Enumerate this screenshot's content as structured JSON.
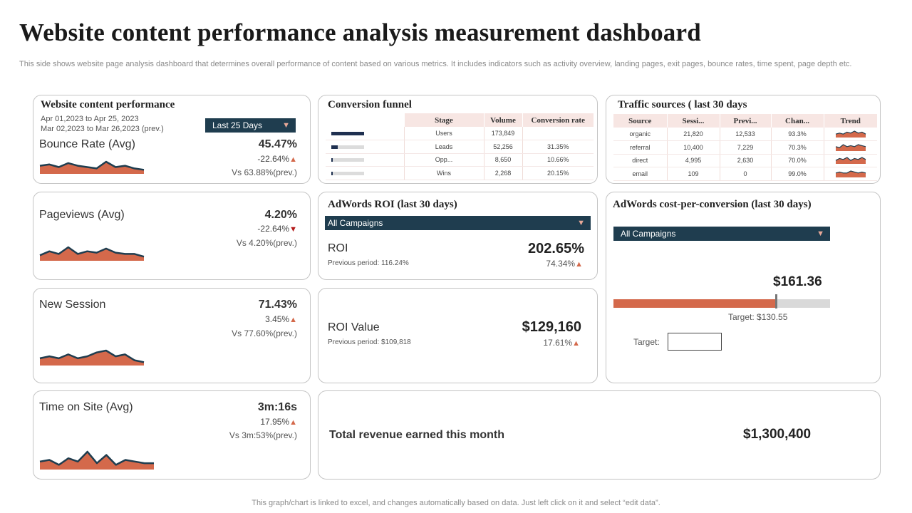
{
  "page": {
    "title": "Website content performance analysis measurement dashboard",
    "subtitle": "This side shows website page analysis dashboard that determines overall performance of content based on various metrics. It includes indicators such as activity overview, landing pages, exit pages, bounce rates, time spent, page depth etc.",
    "footer": "This graph/chart is linked to excel, and changes automatically based on data. Just left click on it and select “edit data”."
  },
  "colors": {
    "accent": "#d4694b",
    "navy": "#1f3d4f",
    "border": "#c4c4c4",
    "header_bg": "#f7e6e3"
  },
  "content_performance": {
    "title": "Website content performance",
    "date_current": "Apr 01,2023 to Apr 25, 2023",
    "date_prev": "Mar 02,2023 to Mar 26,2023 (prev.)",
    "range_dropdown": "Last 25 Days"
  },
  "metrics": [
    {
      "name": "Bounce Rate (Avg)",
      "value": "45.47%",
      "change": "-22.64%",
      "direction": "up",
      "prev": "Vs 63.88%(prev.)",
      "trend": [
        5,
        6,
        4,
        7,
        5,
        4,
        3,
        8,
        4,
        5,
        3,
        2
      ]
    },
    {
      "name": "Pageviews (Avg)",
      "value": "4.20%",
      "change": "-22.64%",
      "direction": "down",
      "prev": "Vs 4.20%(prev.)",
      "trend": [
        3,
        6,
        4,
        9,
        4,
        6,
        5,
        8,
        5,
        4,
        4,
        2
      ]
    },
    {
      "name": "New Session",
      "value": "71.43%",
      "change": "3.45%",
      "direction": "up",
      "prev": "Vs 77.60%(prev.)",
      "trend": [
        3,
        4,
        3,
        5,
        3,
        4,
        6,
        7,
        4,
        5,
        2,
        1
      ]
    },
    {
      "name": "Time on Site (Avg)",
      "value": "3m:16s",
      "change": "17.95%",
      "direction": "up",
      "prev": "Vs 3m:53%(prev.)",
      "trend": [
        4,
        5,
        2,
        6,
        4,
        10,
        3,
        8,
        2,
        5,
        4,
        3,
        3
      ]
    }
  ],
  "funnel": {
    "title": "Conversion  funnel",
    "headers": [
      "Stage",
      "Volume",
      "Conversion rate"
    ],
    "rows": [
      {
        "stage": "Users",
        "volume": "173,849",
        "rate": "",
        "fill": 1.0
      },
      {
        "stage": "Leads",
        "volume": "52,256",
        "rate": "31.35%",
        "fill": 0.2
      },
      {
        "stage": "Opp...",
        "volume": "8,650",
        "rate": "10.66%",
        "fill": 0.04
      },
      {
        "stage": "Wins",
        "volume": "2,268",
        "rate": "20.15%",
        "fill": 0.02
      }
    ]
  },
  "traffic": {
    "title": "Traffic  sources ( last 30 days",
    "headers": [
      "Source",
      "Sessi...",
      "Previ...",
      "Chan...",
      "Trend"
    ],
    "rows": [
      {
        "source": "organic",
        "sessions": "21,820",
        "previous": "12,533",
        "change": "93.3%",
        "trend": [
          2,
          3,
          2,
          4,
          3,
          5,
          3,
          4,
          2
        ]
      },
      {
        "source": "referral",
        "sessions": "10,400",
        "previous": "7,229",
        "change": "70.3%",
        "trend": [
          3,
          2,
          5,
          3,
          4,
          3,
          5,
          4,
          3
        ]
      },
      {
        "source": "direct",
        "sessions": "4,995",
        "previous": "2,630",
        "change": "70.0%",
        "trend": [
          2,
          4,
          3,
          5,
          2,
          4,
          3,
          5,
          3
        ]
      },
      {
        "source": "email",
        "sessions": "109",
        "previous": "0",
        "change": "99.0%",
        "trend": [
          3,
          4,
          3,
          3,
          5,
          4,
          3,
          4,
          3
        ]
      }
    ]
  },
  "adwords_roi": {
    "title": "AdWords  ROI (last 30 days)",
    "dropdown": "All Campaigns",
    "roi_label": "ROI",
    "roi_value": "202.65%",
    "roi_prev": "Previous period: 116.24%",
    "roi_change": "74.34%",
    "roi_value_label": "ROI Value",
    "roi_value_amount": "$129,160",
    "roi_value_prev": "Previous period: $109,818",
    "roi_value_change": "17.61%"
  },
  "cost_per_conversion": {
    "title": "AdWords  cost-per-conversion  (last 30 days)",
    "dropdown": "All Campaigns",
    "value": "$161.36",
    "target_text": "Target:  $130.55",
    "fill": 0.75,
    "target_label": "Target:",
    "target_input": ""
  },
  "revenue": {
    "label": "Total revenue earned this month",
    "value": "$1,300,400"
  }
}
